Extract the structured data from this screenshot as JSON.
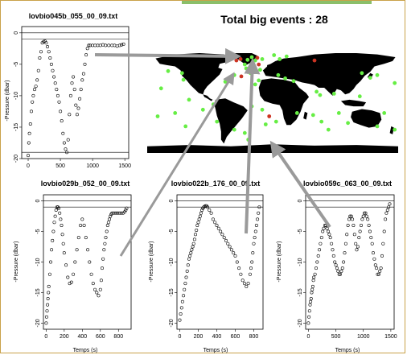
{
  "header": {
    "title": "Total big events :  28"
  },
  "colors": {
    "accent_bar": "#8bbf6a",
    "frame_border": "#c9a24a",
    "arrow": "#9a9a9a",
    "land": "#000000",
    "event_green": "#66ee44",
    "event_red": "#cc3322"
  },
  "chart_data": [
    {
      "type": "scatter",
      "title": "lovbio045b_055_00_09.txt",
      "xlabel": "",
      "ylabel": "-Pressure (dbar)",
      "xlim": [
        -100,
        1560
      ],
      "ylim": [
        -20,
        1
      ],
      "xticks": [
        "0",
        "500",
        "1000",
        "1500"
      ],
      "yticks": [
        "0",
        "-5",
        "-10",
        "-15",
        "-20"
      ],
      "hlines": [
        0,
        -1,
        -19
      ],
      "series": [
        {
          "x": [
            0,
            10,
            20,
            35,
            50,
            65,
            80,
            100,
            120,
            140,
            160,
            180,
            200,
            220,
            240,
            260,
            280,
            300,
            320,
            340,
            360,
            380,
            400,
            420,
            440,
            460,
            480,
            500,
            520,
            540,
            560,
            580,
            600,
            620,
            640,
            660,
            680,
            700,
            720,
            740,
            760,
            780,
            800,
            820,
            840,
            860,
            880,
            900,
            920,
            940,
            960,
            1000,
            1040,
            1080,
            1120,
            1160,
            1200,
            1250,
            1300,
            1340,
            1380,
            1420,
            1450,
            1480
          ],
          "y": [
            -19.5,
            -17.5,
            -16,
            -14.5,
            -12.5,
            -11,
            -10,
            -9,
            -8.5,
            -7.5,
            -6,
            -4,
            -3,
            -1.6,
            -1.4,
            -1.3,
            -1.6,
            -2.2,
            -3,
            -4,
            -5,
            -6,
            -7,
            -8,
            -9,
            -10,
            -11,
            -12.5,
            -14,
            -16,
            -17.5,
            -18.5,
            -19,
            -17,
            -13,
            -10,
            -8,
            -7,
            -9,
            -11.5,
            -13,
            -12,
            -10.5,
            -9,
            -7.5,
            -6.5,
            -5,
            -3.5,
            -2.5,
            -2,
            -2,
            -2,
            -2,
            -2,
            -2,
            -1.9,
            -2,
            -2,
            -2,
            -2,
            -2.1,
            -2,
            -1.9,
            -1.8
          ]
        }
      ]
    },
    {
      "type": "scatter",
      "title": "lovbio029b_052_00_09.txt",
      "xlabel": "Temps (s)",
      "ylabel": "-Pressure (dbar)",
      "xlim": [
        -30,
        940
      ],
      "ylim": [
        -21,
        1
      ],
      "xticks": [
        "0",
        "200",
        "400",
        "600",
        "800"
      ],
      "yticks": [
        "0",
        "-5",
        "-10",
        "-15",
        "-20"
      ],
      "hlines": [
        0,
        -1
      ],
      "series": [
        {
          "x": [
            0,
            5,
            10,
            15,
            20,
            25,
            30,
            40,
            50,
            60,
            70,
            80,
            90,
            100,
            110,
            120,
            130,
            140,
            150,
            160,
            170,
            180,
            190,
            200,
            220,
            240,
            260,
            280,
            300,
            320,
            340,
            360,
            380,
            400,
            420,
            440,
            460,
            480,
            500,
            520,
            540,
            560,
            580,
            600,
            610,
            620,
            630,
            640,
            650,
            660,
            670,
            680,
            690,
            700,
            710,
            720,
            730,
            750,
            770,
            790,
            810,
            830,
            850,
            870,
            880,
            890
          ],
          "y": [
            -20,
            -19,
            -18,
            -17,
            -16,
            -15,
            -14,
            -12,
            -10,
            -8,
            -6.5,
            -5,
            -3.5,
            -2.5,
            -1.5,
            -1,
            -1,
            -1.2,
            -2,
            -3,
            -4,
            -5.5,
            -7,
            -8.5,
            -10.5,
            -12.5,
            -13.5,
            -13.3,
            -12,
            -10,
            -8,
            -6,
            -4,
            -3,
            -4,
            -6,
            -8,
            -10,
            -12,
            -13.5,
            -14.5,
            -15,
            -15.5,
            -14.5,
            -13,
            -11,
            -9.5,
            -8,
            -7,
            -6,
            -5,
            -4,
            -3.5,
            -3,
            -2.5,
            -2.2,
            -2,
            -2,
            -2,
            -2,
            -2,
            -2,
            -2,
            -1.8,
            -1.5,
            -1.2
          ]
        }
      ]
    },
    {
      "type": "scatter",
      "title": "lovbio022b_176_00_09.txt",
      "xlabel": "Temps (s)",
      "ylabel": "-Pressure (dbar)",
      "xlim": [
        -30,
        900
      ],
      "ylim": [
        -21,
        1
      ],
      "xticks": [
        "0",
        "200",
        "400",
        "600",
        "800"
      ],
      "yticks": [
        "0",
        "-5",
        "-10",
        "-15",
        "-20"
      ],
      "hlines": [
        0,
        -1
      ],
      "series": [
        {
          "x": [
            0,
            10,
            20,
            30,
            40,
            50,
            60,
            70,
            80,
            90,
            100,
            110,
            120,
            130,
            140,
            150,
            160,
            170,
            180,
            190,
            200,
            210,
            220,
            230,
            240,
            250,
            260,
            270,
            280,
            290,
            300,
            320,
            340,
            360,
            380,
            400,
            420,
            440,
            460,
            480,
            500,
            520,
            540,
            560,
            580,
            600,
            620,
            640,
            660,
            680,
            700,
            720,
            740,
            760,
            770,
            780,
            790,
            800,
            810,
            820,
            830,
            840,
            850,
            860
          ],
          "y": [
            -19.5,
            -18.5,
            -17.5,
            -16.5,
            -15.5,
            -14.5,
            -13.5,
            -12.5,
            -11.5,
            -10.5,
            -9.5,
            -9,
            -8.5,
            -8,
            -7.5,
            -7,
            -6.3,
            -5.5,
            -4.8,
            -4,
            -3.5,
            -3,
            -2.5,
            -2,
            -1.5,
            -1.2,
            -1,
            -0.9,
            -0.8,
            -0.8,
            -1,
            -1.5,
            -2,
            -3,
            -3.5,
            -4,
            -4.5,
            -5,
            -5.5,
            -6,
            -6.5,
            -7,
            -7.5,
            -8,
            -8.5,
            -9,
            -10,
            -11,
            -12,
            -13,
            -13.5,
            -14,
            -13.5,
            -12,
            -11,
            -10,
            -8.5,
            -7,
            -6,
            -5,
            -4,
            -3,
            -2,
            -1
          ]
        }
      ]
    },
    {
      "type": "scatter",
      "title": "lovbio059c_063_00_09.txt",
      "xlabel": "Temps (s)",
      "ylabel": "-Pressure (dbar)",
      "xlim": [
        -50,
        1560
      ],
      "ylim": [
        -21,
        1
      ],
      "xticks": [
        "0",
        "500",
        "1000",
        "1500"
      ],
      "yticks": [
        "0",
        "-5",
        "-10",
        "-15",
        "-20"
      ],
      "hlines": [
        0,
        -1
      ],
      "series": [
        {
          "x": [
            0,
            10,
            20,
            30,
            40,
            50,
            60,
            70,
            80,
            90,
            100,
            120,
            140,
            160,
            180,
            200,
            220,
            240,
            260,
            280,
            300,
            320,
            340,
            360,
            380,
            400,
            420,
            440,
            460,
            480,
            500,
            520,
            540,
            560,
            580,
            600,
            620,
            640,
            660,
            680,
            700,
            720,
            740,
            760,
            780,
            800,
            820,
            840,
            860,
            880,
            900,
            920,
            940,
            960,
            980,
            1000,
            1020,
            1040,
            1060,
            1080,
            1100,
            1120,
            1140,
            1160,
            1180,
            1200,
            1220,
            1240,
            1260,
            1280,
            1300,
            1320,
            1340,
            1360,
            1380,
            1400,
            1420,
            1440,
            1460,
            1480
          ],
          "y": [
            -20,
            -19,
            -18,
            -17,
            -16.5,
            -16,
            -15,
            -14.5,
            -14,
            -13,
            -12.5,
            -12,
            -11,
            -10,
            -9,
            -8,
            -7,
            -6,
            -5,
            -4.5,
            -4,
            -4,
            -4.5,
            -5,
            -5.5,
            -6,
            -7,
            -8,
            -9,
            -10,
            -10.5,
            -11,
            -11.5,
            -12,
            -12,
            -11.5,
            -11,
            -10,
            -8.5,
            -7,
            -5.5,
            -4,
            -3,
            -2.5,
            -2.5,
            -3,
            -4,
            -5.5,
            -7,
            -8,
            -7.5,
            -6,
            -5,
            -4,
            -3,
            -2.5,
            -2,
            -2,
            -2.5,
            -3,
            -4,
            -5,
            -6,
            -7,
            -8.5,
            -9.5,
            -10.5,
            -11,
            -12,
            -12,
            -11.5,
            -11,
            -9,
            -7,
            -5,
            -3,
            -2,
            -1.5,
            -1,
            -0.5
          ]
        }
      ]
    }
  ],
  "map": {
    "events": [
      {
        "lon": -52,
        "lat": 64,
        "color": "#cc3322"
      },
      {
        "lon": -46,
        "lat": 66,
        "color": "#cc3322"
      },
      {
        "lon": -36,
        "lat": 65,
        "color": "#66ee44"
      },
      {
        "lon": -30,
        "lat": 69,
        "color": "#66ee44"
      },
      {
        "lon": -22,
        "lat": 68,
        "color": "#cc3322"
      },
      {
        "lon": -25,
        "lat": 64,
        "color": "#66ee44"
      },
      {
        "lon": -15,
        "lat": 66,
        "color": "#66ee44"
      },
      {
        "lon": 2,
        "lat": 72,
        "color": "#66ee44"
      },
      {
        "lon": 10,
        "lat": 66,
        "color": "#66ee44"
      },
      {
        "lon": 20,
        "lat": 70,
        "color": "#66ee44"
      },
      {
        "lon": -40,
        "lat": 58,
        "color": "#66ee44"
      },
      {
        "lon": -30,
        "lat": 56,
        "color": "#66ee44"
      },
      {
        "lon": -38,
        "lat": 52,
        "color": "#66ee44"
      },
      {
        "lon": -20,
        "lat": 58,
        "color": "#cc3322"
      },
      {
        "lon": -18,
        "lat": 50,
        "color": "#66ee44"
      },
      {
        "lon": -32,
        "lat": 45,
        "color": "#66ee44"
      },
      {
        "lon": -45,
        "lat": 40,
        "color": "#cc3322"
      },
      {
        "lon": -55,
        "lat": 42,
        "color": "#66ee44"
      },
      {
        "lon": -63,
        "lat": 36,
        "color": "#66ee44"
      },
      {
        "lon": -68,
        "lat": 32,
        "color": "#66ee44"
      },
      {
        "lon": -20,
        "lat": 34,
        "color": "#66ee44"
      },
      {
        "lon": -25,
        "lat": 28,
        "color": "#66ee44"
      },
      {
        "lon": 8,
        "lat": 42,
        "color": "#66ee44"
      },
      {
        "lon": 18,
        "lat": 37,
        "color": "#66ee44"
      },
      {
        "lon": 30,
        "lat": 33,
        "color": "#66ee44"
      },
      {
        "lon": 60,
        "lat": 64,
        "color": "#cc3322"
      },
      {
        "lon": 63,
        "lat": 17,
        "color": "#66ee44"
      },
      {
        "lon": 68,
        "lat": 12,
        "color": "#66ee44"
      },
      {
        "lon": 88,
        "lat": 14,
        "color": "#66ee44"
      },
      {
        "lon": 140,
        "lat": 38,
        "color": "#66ee44"
      },
      {
        "lon": 150,
        "lat": 42,
        "color": "#66ee44"
      },
      {
        "lon": 128,
        "lat": 45,
        "color": "#66ee44"
      },
      {
        "lon": 125,
        "lat": 10,
        "color": "#66ee44"
      },
      {
        "lon": 175,
        "lat": 30,
        "color": "#66ee44"
      },
      {
        "lon": -160,
        "lat": 22,
        "color": "#66ee44"
      },
      {
        "lon": -150,
        "lat": 48,
        "color": "#66ee44"
      },
      {
        "lon": -130,
        "lat": 45,
        "color": "#66ee44"
      },
      {
        "lon": -128,
        "lat": 35,
        "color": "#66ee44"
      },
      {
        "lon": -120,
        "lat": 5,
        "color": "#66ee44"
      },
      {
        "lon": -100,
        "lat": -10,
        "color": "#66ee44"
      },
      {
        "lon": -85,
        "lat": -2,
        "color": "#66ee44"
      },
      {
        "lon": -140,
        "lat": -15,
        "color": "#66ee44"
      },
      {
        "lon": -125,
        "lat": -35,
        "color": "#66ee44"
      },
      {
        "lon": -80,
        "lat": -28,
        "color": "#66ee44"
      },
      {
        "lon": -30,
        "lat": -5,
        "color": "#66ee44"
      },
      {
        "lon": -15,
        "lat": -10,
        "color": "#66ee44"
      },
      {
        "lon": -5,
        "lat": -20,
        "color": "#cc3322"
      },
      {
        "lon": 5,
        "lat": -28,
        "color": "#66ee44"
      },
      {
        "lon": -10,
        "lat": -32,
        "color": "#66ee44"
      },
      {
        "lon": -40,
        "lat": -45,
        "color": "#66ee44"
      },
      {
        "lon": -55,
        "lat": -40,
        "color": "#66ee44"
      },
      {
        "lon": 35,
        "lat": -15,
        "color": "#66ee44"
      },
      {
        "lon": 58,
        "lat": -18,
        "color": "#66ee44"
      },
      {
        "lon": 70,
        "lat": -28,
        "color": "#66ee44"
      },
      {
        "lon": 80,
        "lat": -40,
        "color": "#66ee44"
      },
      {
        "lon": 95,
        "lat": -15,
        "color": "#66ee44"
      },
      {
        "lon": 108,
        "lat": -30,
        "color": "#66ee44"
      },
      {
        "lon": 150,
        "lat": -35,
        "color": "#66ee44"
      },
      {
        "lon": 160,
        "lat": -15,
        "color": "#66ee44"
      },
      {
        "lon": 175,
        "lat": -40,
        "color": "#66ee44"
      },
      {
        "lon": -165,
        "lat": -20,
        "color": "#66ee44"
      },
      {
        "lon": -35,
        "lat": -55,
        "color": "#66ee44"
      }
    ]
  }
}
